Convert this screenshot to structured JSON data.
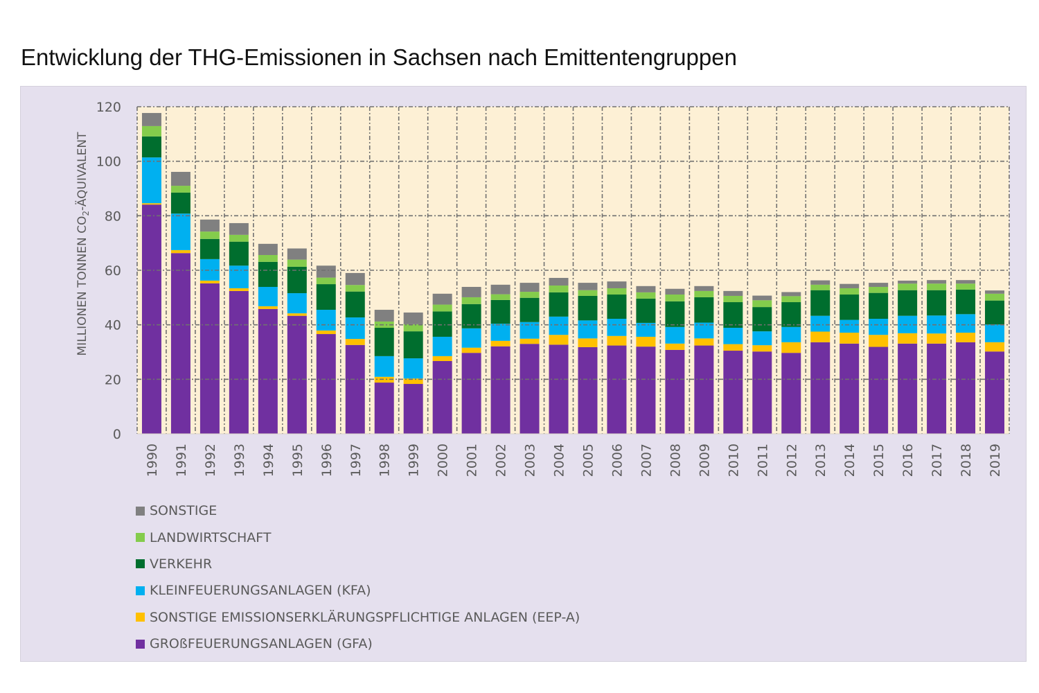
{
  "chart_data": {
    "type": "bar",
    "stacked": true,
    "title": "Entwicklung der THG-Emissionen in Sachsen nach Emittentengruppen",
    "xlabel": "",
    "ylabel": "MILLIONEN TONNEN CO₂-ÄQUIVALENT",
    "ylabel_parts": [
      "MILLIONEN TONNEN CO",
      "2",
      "-ÄQUIVALENT"
    ],
    "ylim": [
      0,
      120
    ],
    "yticks": [
      0,
      20,
      40,
      60,
      80,
      100,
      120
    ],
    "grid": true,
    "legend_position": "bottom-left",
    "categories": [
      "1990",
      "1991",
      "1992",
      "1993",
      "1994",
      "1995",
      "1996",
      "1997",
      "1998",
      "1999",
      "2000",
      "2001",
      "2002",
      "2003",
      "2004",
      "2005",
      "2006",
      "2007",
      "2008",
      "2009",
      "2010",
      "2011",
      "2012",
      "2013",
      "2014",
      "2015",
      "2016",
      "2017",
      "2018",
      "2019"
    ],
    "series": [
      {
        "name": "GROẞFEUERUNGSANLAGEN (GFA)",
        "color": "#7030a0",
        "values": [
          84.1,
          66.3,
          55.2,
          52.4,
          45.8,
          43.3,
          36.6,
          32.6,
          18.8,
          18.3,
          26.7,
          29.7,
          32.1,
          33.0,
          32.7,
          31.8,
          32.4,
          32.0,
          30.8,
          32.4,
          30.5,
          30.2,
          29.7,
          33.6,
          33.1,
          31.9,
          33.1,
          33.1,
          33.6,
          30.2
        ]
      },
      {
        "name": "SONSTIGE EMISSIONSERKLÄRUNGSPFLICHTIGE ANLAGEN (EEP-A)",
        "color": "#ffc000",
        "values": [
          0.5,
          1.1,
          1.0,
          1.0,
          1.0,
          0.9,
          1.3,
          2.2,
          2.1,
          2.0,
          1.8,
          1.9,
          2.0,
          1.9,
          3.6,
          3.2,
          3.5,
          3.6,
          2.3,
          2.6,
          2.4,
          2.3,
          3.9,
          3.9,
          4.0,
          4.4,
          3.8,
          3.7,
          3.5,
          3.4
        ]
      },
      {
        "name": "KLEINFEUERUNGSANLAGEN (KFA)",
        "color": "#00b0f0",
        "values": [
          16.8,
          13.4,
          7.9,
          8.3,
          7.1,
          7.4,
          7.6,
          7.9,
          7.6,
          7.4,
          7.1,
          7.1,
          6.3,
          6.1,
          6.7,
          6.6,
          6.3,
          5.1,
          6.1,
          5.8,
          6.0,
          5.1,
          5.6,
          5.8,
          4.7,
          5.9,
          6.4,
          6.6,
          6.8,
          6.5
        ]
      },
      {
        "name": "VERKEHR",
        "color": "#006e2e",
        "values": [
          7.7,
          7.7,
          7.4,
          8.8,
          9.2,
          9.7,
          9.4,
          9.5,
          10.4,
          9.9,
          9.3,
          8.9,
          8.7,
          8.9,
          8.9,
          9.0,
          8.9,
          8.9,
          9.4,
          9.3,
          9.4,
          8.9,
          9.1,
          9.4,
          9.3,
          9.5,
          9.4,
          9.3,
          9.0,
          8.8
        ]
      },
      {
        "name": "LANDWIRTSCHAFT",
        "color": "#84cc4c",
        "values": [
          3.8,
          2.5,
          2.7,
          2.5,
          2.5,
          2.6,
          2.4,
          2.4,
          2.3,
          2.6,
          2.5,
          2.5,
          2.1,
          2.2,
          2.5,
          2.1,
          2.3,
          2.3,
          2.5,
          2.3,
          2.3,
          2.5,
          2.2,
          2.0,
          2.3,
          2.2,
          2.4,
          2.4,
          2.2,
          2.5
        ]
      },
      {
        "name": "SONSTIGE",
        "color": "#808080",
        "values": [
          4.8,
          5.1,
          4.4,
          4.3,
          4.1,
          4.1,
          4.4,
          4.4,
          4.3,
          4.3,
          4.0,
          3.8,
          3.5,
          3.3,
          2.8,
          2.7,
          2.5,
          2.3,
          2.1,
          1.8,
          1.8,
          1.7,
          1.5,
          1.6,
          1.6,
          1.5,
          1.1,
          1.3,
          1.3,
          1.2
        ]
      }
    ],
    "legend_order": [
      "SONSTIGE",
      "LANDWIRTSCHAFT",
      "VERKEHR",
      "KLEINFEUERUNGSANLAGEN (KFA)",
      "SONSTIGE EMISSIONSERKLÄRUNGSPFLICHTIGE ANLAGEN (EEP-A)",
      "GROẞFEUERUNGSANLAGEN (GFA)"
    ],
    "colors": {
      "plot_background": "#fdf0d5",
      "panel_background": "#e5e0ee",
      "grid": "#707070"
    }
  },
  "legend": [
    {
      "label": "SONSTIGE",
      "color": "#808080"
    },
    {
      "label": "LANDWIRTSCHAFT",
      "color": "#84cc4c"
    },
    {
      "label": "VERKEHR",
      "color": "#006e2e"
    },
    {
      "label": "KLEINFEUERUNGSANLAGEN (KFA)",
      "color": "#00b0f0"
    },
    {
      "label": "SONSTIGE EMISSIONSERKLÄRUNGSPFLICHTIGE ANLAGEN (EEP-A)",
      "color": "#ffc000"
    },
    {
      "label": "GROßFEUERUNGSANLAGEN (GFA)",
      "color": "#7030a0"
    }
  ]
}
